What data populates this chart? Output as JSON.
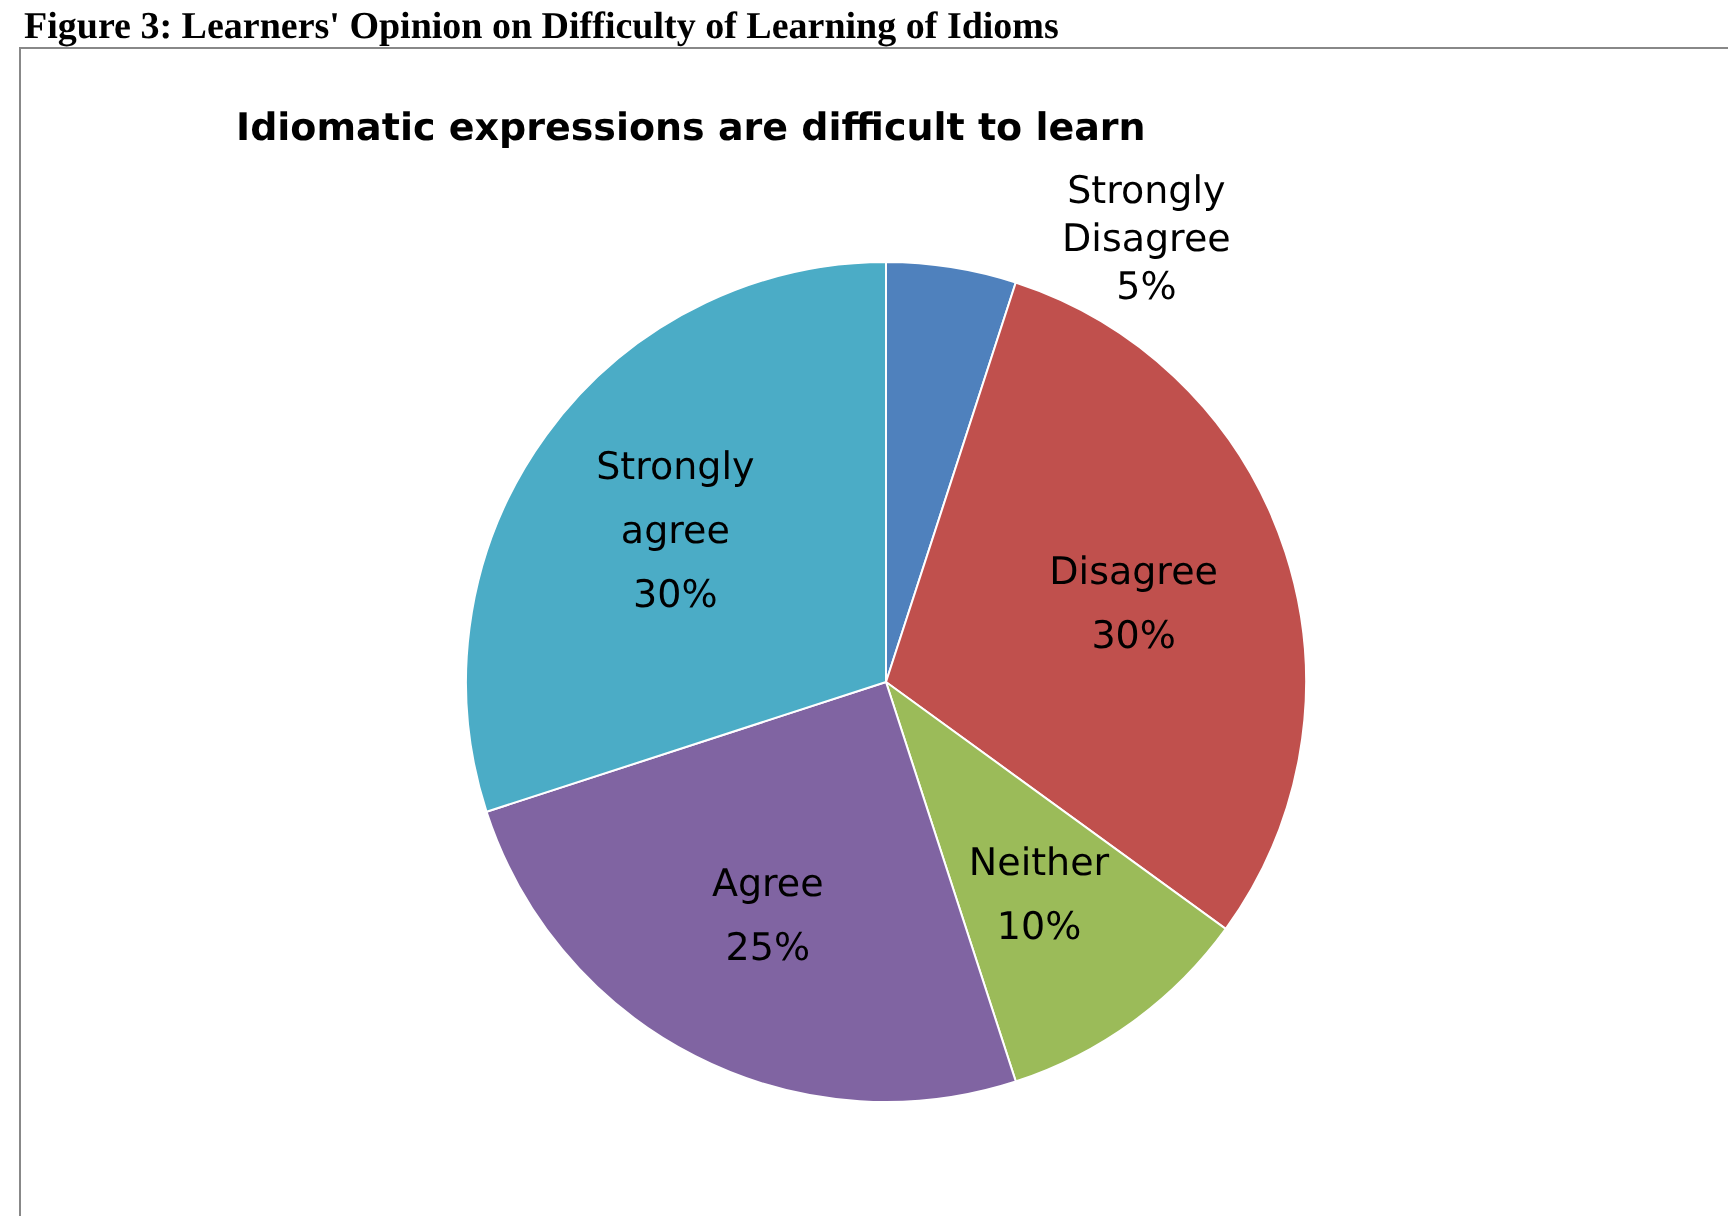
{
  "chart_data": {
    "type": "pie",
    "title": "Figure 3: Learners' Opinion on Difficulty of Learning of Idioms",
    "subtitle": "Idiomatic expressions are difficult to learn",
    "categories": [
      "Strongly Disagree",
      "Disagree",
      "Neither",
      "Agree",
      "Strongly agree"
    ],
    "values": [
      5,
      30,
      10,
      25,
      30
    ],
    "colors": [
      "#4f81bd",
      "#c0504d",
      "#9bbb59",
      "#8064a2",
      "#4bacc6"
    ],
    "value_labels": [
      "5%",
      "30%",
      "10%",
      "25%",
      "30%"
    ]
  }
}
